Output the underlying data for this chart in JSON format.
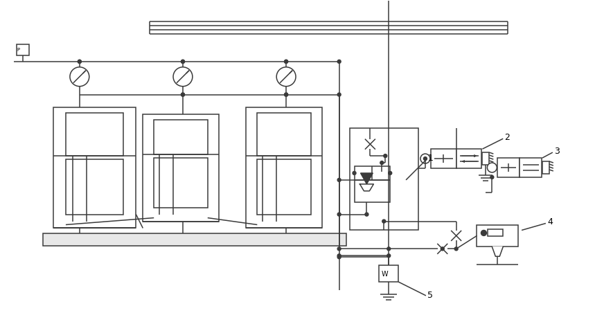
{
  "bg_color": "#ffffff",
  "line_color": "#3a3a3a",
  "lw": 1.1,
  "figsize": [
    8.59,
    4.78
  ],
  "dpi": 100
}
